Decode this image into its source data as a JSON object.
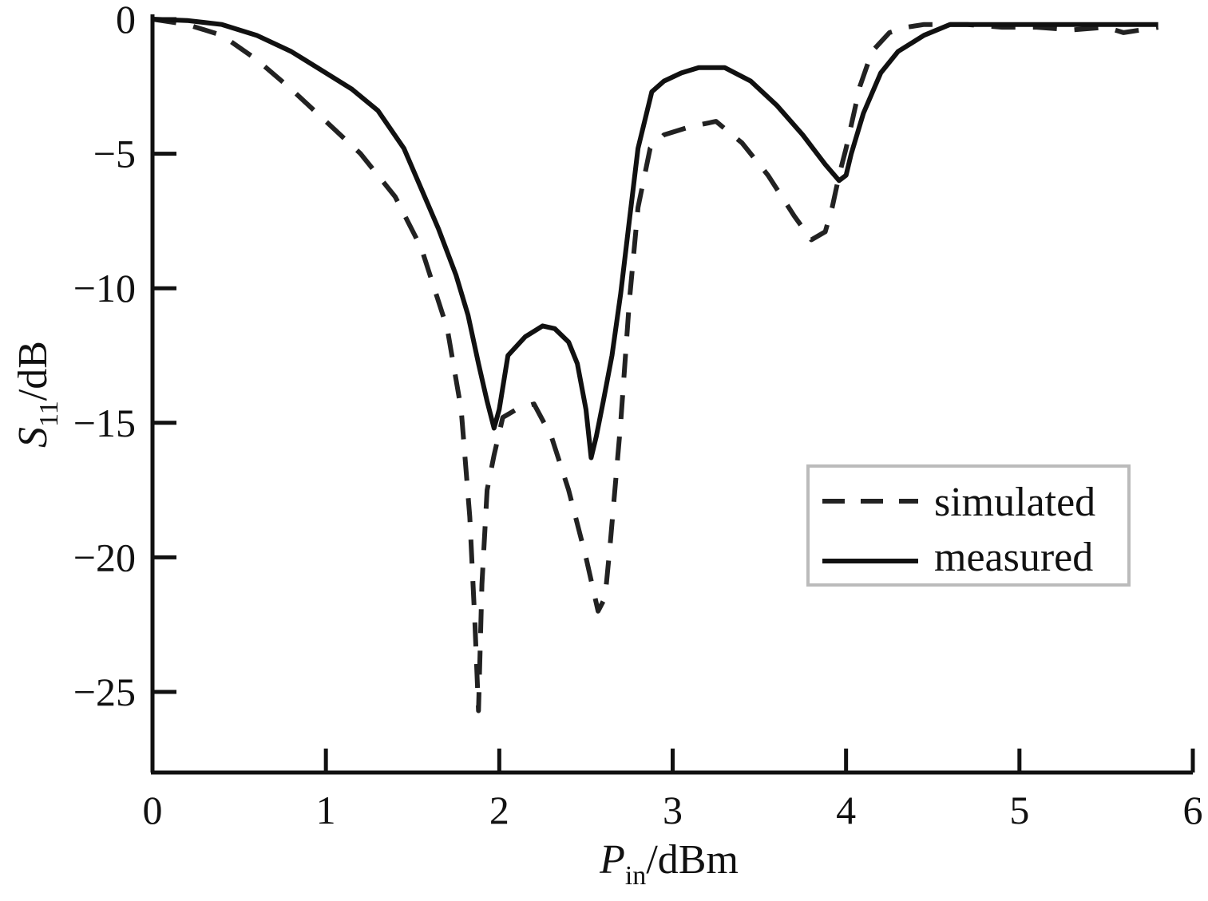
{
  "chart_data": {
    "type": "line",
    "title": "",
    "xlabel": {
      "main": "P",
      "sub": "in",
      "unit": "/dBm"
    },
    "ylabel": {
      "main": "S",
      "sub": "11",
      "unit": "/dB"
    },
    "xlim": [
      0,
      6
    ],
    "ylim": [
      -28,
      0
    ],
    "xticks": [
      0,
      1,
      2,
      3,
      4,
      5,
      6
    ],
    "xtick_labels": [
      "0",
      "1",
      "2",
      "3",
      "4",
      "5",
      "6"
    ],
    "yticks": [
      0,
      -5,
      -10,
      -15,
      -20,
      -25
    ],
    "ytick_labels": [
      "0",
      "−5",
      "−10",
      "−15",
      "−20",
      "−25"
    ],
    "grid": false,
    "legend_position": "lower-right",
    "series": [
      {
        "name": "simulated",
        "style": "dashed",
        "color": "#222222",
        "x": [
          0.0,
          0.2,
          0.4,
          0.6,
          0.8,
          1.0,
          1.2,
          1.4,
          1.55,
          1.7,
          1.78,
          1.83,
          1.86,
          1.88,
          1.9,
          1.93,
          1.97,
          2.02,
          2.1,
          2.2,
          2.3,
          2.4,
          2.5,
          2.57,
          2.61,
          2.64,
          2.7,
          2.75,
          2.8,
          2.87,
          2.95,
          3.1,
          3.25,
          3.4,
          3.55,
          3.7,
          3.8,
          3.88,
          3.92,
          3.96,
          4.0,
          4.08,
          4.15,
          4.25,
          4.35,
          4.45,
          4.55,
          4.7,
          4.9,
          5.1,
          5.3,
          5.5,
          5.6,
          5.7,
          5.8
        ],
        "y": [
          0.0,
          -0.2,
          -0.6,
          -1.5,
          -2.6,
          -3.8,
          -5.0,
          -6.6,
          -8.5,
          -11.5,
          -14.5,
          -18.5,
          -22.5,
          -25.7,
          -21.0,
          -17.5,
          -16.2,
          -14.8,
          -14.5,
          -14.3,
          -15.5,
          -17.5,
          -20.0,
          -22.0,
          -21.5,
          -19.5,
          -15.0,
          -10.5,
          -7.0,
          -4.8,
          -4.3,
          -4.0,
          -3.8,
          -4.6,
          -5.8,
          -7.3,
          -8.2,
          -7.9,
          -7.0,
          -5.8,
          -4.8,
          -2.5,
          -1.2,
          -0.5,
          -0.3,
          -0.2,
          -0.2,
          -0.2,
          -0.3,
          -0.3,
          -0.4,
          -0.3,
          -0.5,
          -0.4,
          -0.3
        ]
      },
      {
        "name": "measured",
        "style": "solid",
        "color": "#111111",
        "x": [
          0.0,
          0.2,
          0.4,
          0.6,
          0.8,
          1.0,
          1.15,
          1.3,
          1.45,
          1.55,
          1.65,
          1.75,
          1.82,
          1.88,
          1.93,
          1.97,
          2.0,
          2.05,
          2.15,
          2.25,
          2.32,
          2.4,
          2.45,
          2.5,
          2.53,
          2.56,
          2.6,
          2.65,
          2.7,
          2.75,
          2.8,
          2.88,
          2.95,
          3.05,
          3.15,
          3.3,
          3.45,
          3.6,
          3.75,
          3.88,
          3.96,
          4.0,
          4.03,
          4.1,
          4.2,
          4.3,
          4.45,
          4.6,
          4.8,
          5.0,
          5.2,
          5.4,
          5.6,
          5.8
        ],
        "y": [
          0.0,
          -0.05,
          -0.2,
          -0.6,
          -1.2,
          -2.0,
          -2.6,
          -3.4,
          -4.8,
          -6.3,
          -7.8,
          -9.5,
          -11.0,
          -12.8,
          -14.2,
          -15.2,
          -14.5,
          -12.5,
          -11.8,
          -11.4,
          -11.5,
          -12.0,
          -12.8,
          -14.5,
          -16.3,
          -15.5,
          -14.2,
          -12.5,
          -10.2,
          -7.5,
          -4.8,
          -2.7,
          -2.3,
          -2.0,
          -1.8,
          -1.8,
          -2.3,
          -3.2,
          -4.3,
          -5.4,
          -6.0,
          -5.8,
          -5.0,
          -3.5,
          -2.0,
          -1.2,
          -0.6,
          -0.2,
          -0.2,
          -0.2,
          -0.2,
          -0.2,
          -0.2,
          -0.2
        ]
      }
    ]
  }
}
